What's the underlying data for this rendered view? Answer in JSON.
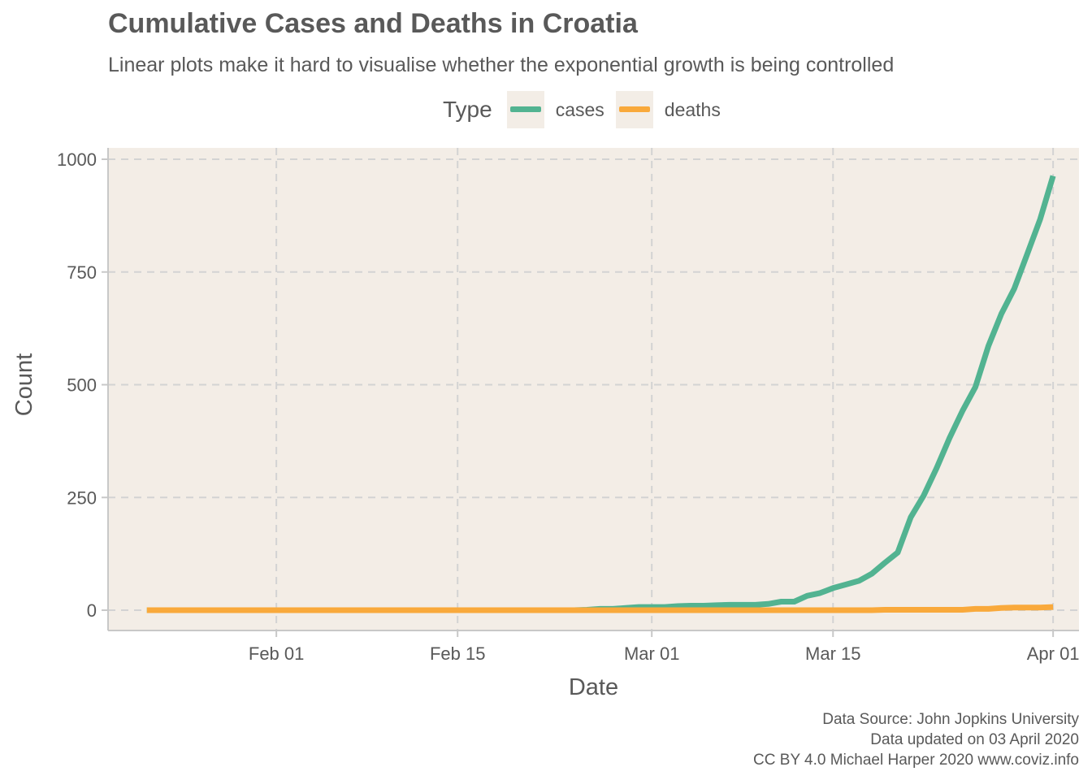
{
  "title": "Cumulative Cases and Deaths in Croatia",
  "subtitle": "Linear plots make it hard to visualise whether the exponential growth is being controlled",
  "legend": {
    "title": "Type",
    "items": [
      {
        "label": "cases",
        "color": "#52b391"
      },
      {
        "label": "deaths",
        "color": "#f9a93b"
      }
    ]
  },
  "caption": {
    "line1": "Data Source: John Jopkins University",
    "line2": "Data updated on 03 April 2020",
    "line3": "CC BY 4.0 Michael Harper 2020 www.coviz.info"
  },
  "colors": {
    "panel_background": "#f3ede6",
    "grid": "#d3d3d3",
    "axis": "#c8c8c8",
    "text": "#595959"
  },
  "chart_data": {
    "type": "line",
    "title": "Cumulative Cases and Deaths in Croatia",
    "subtitle": "Linear plots make it hard to visualise whether the exponential growth is being controlled",
    "xlabel": "Date",
    "ylabel": "Count",
    "xlim": [
      "2020-01-19",
      "2020-04-03"
    ],
    "ylim": [
      -45,
      1000
    ],
    "x_ticks": [
      {
        "date": "2020-02-01",
        "label": "Feb 01"
      },
      {
        "date": "2020-02-15",
        "label": "Feb 15"
      },
      {
        "date": "2020-03-01",
        "label": "Mar 01"
      },
      {
        "date": "2020-03-15",
        "label": "Mar 15"
      },
      {
        "date": "2020-04-01",
        "label": "Apr 01"
      }
    ],
    "y_ticks": [
      0,
      250,
      500,
      750,
      1000
    ],
    "grid": true,
    "legend_position": "top",
    "series": [
      {
        "name": "cases",
        "color": "#52b391",
        "points": [
          [
            "2020-01-22",
            0
          ],
          [
            "2020-02-24",
            0
          ],
          [
            "2020-02-25",
            1
          ],
          [
            "2020-02-26",
            3
          ],
          [
            "2020-02-27",
            3
          ],
          [
            "2020-02-28",
            5
          ],
          [
            "2020-02-29",
            7
          ],
          [
            "2020-03-01",
            7
          ],
          [
            "2020-03-02",
            7
          ],
          [
            "2020-03-03",
            9
          ],
          [
            "2020-03-04",
            10
          ],
          [
            "2020-03-05",
            10
          ],
          [
            "2020-03-06",
            11
          ],
          [
            "2020-03-07",
            12
          ],
          [
            "2020-03-08",
            12
          ],
          [
            "2020-03-09",
            12
          ],
          [
            "2020-03-10",
            14
          ],
          [
            "2020-03-11",
            19
          ],
          [
            "2020-03-12",
            19
          ],
          [
            "2020-03-13",
            32
          ],
          [
            "2020-03-14",
            38
          ],
          [
            "2020-03-15",
            49
          ],
          [
            "2020-03-16",
            57
          ],
          [
            "2020-03-17",
            65
          ],
          [
            "2020-03-18",
            81
          ],
          [
            "2020-03-19",
            105
          ],
          [
            "2020-03-20",
            128
          ],
          [
            "2020-03-21",
            206
          ],
          [
            "2020-03-22",
            254
          ],
          [
            "2020-03-23",
            315
          ],
          [
            "2020-03-24",
            382
          ],
          [
            "2020-03-25",
            442
          ],
          [
            "2020-03-26",
            495
          ],
          [
            "2020-03-27",
            586
          ],
          [
            "2020-03-28",
            657
          ],
          [
            "2020-03-29",
            713
          ],
          [
            "2020-03-30",
            790
          ],
          [
            "2020-03-31",
            867
          ],
          [
            "2020-04-01",
            963
          ]
        ]
      },
      {
        "name": "deaths",
        "color": "#f9a93b",
        "points": [
          [
            "2020-01-22",
            0
          ],
          [
            "2020-03-18",
            0
          ],
          [
            "2020-03-19",
            1
          ],
          [
            "2020-03-25",
            1
          ],
          [
            "2020-03-26",
            3
          ],
          [
            "2020-03-27",
            3
          ],
          [
            "2020-03-28",
            5
          ],
          [
            "2020-03-29",
            6
          ],
          [
            "2020-03-30",
            6
          ],
          [
            "2020-03-31",
            6
          ],
          [
            "2020-04-01",
            7
          ]
        ]
      }
    ]
  }
}
